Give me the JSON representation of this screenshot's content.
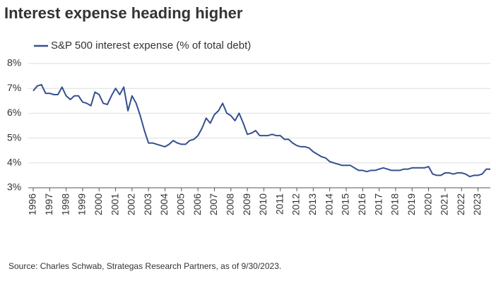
{
  "chart_data": {
    "type": "line",
    "title": "Interest expense heading higher",
    "source": "Source: Charles Schwab, Strategas Research Partners, as of 9/30/2023.",
    "x": [
      1996,
      1996.25,
      1996.5,
      1996.75,
      1997,
      1997.25,
      1997.5,
      1997.75,
      1998,
      1998.25,
      1998.5,
      1998.75,
      1999,
      1999.25,
      1999.5,
      1999.75,
      2000,
      2000.25,
      2000.5,
      2000.75,
      2001,
      2001.25,
      2001.5,
      2001.75,
      2002,
      2002.25,
      2002.5,
      2002.75,
      2003,
      2003.25,
      2003.5,
      2003.75,
      2004,
      2004.25,
      2004.5,
      2004.75,
      2005,
      2005.25,
      2005.5,
      2005.75,
      2006,
      2006.25,
      2006.5,
      2006.75,
      2007,
      2007.25,
      2007.5,
      2007.75,
      2008,
      2008.25,
      2008.5,
      2008.75,
      2009,
      2009.25,
      2009.5,
      2009.75,
      2010,
      2010.25,
      2010.5,
      2010.75,
      2011,
      2011.25,
      2011.5,
      2011.75,
      2012,
      2012.25,
      2012.5,
      2012.75,
      2013,
      2013.25,
      2013.5,
      2013.75,
      2014,
      2014.25,
      2014.5,
      2014.75,
      2015,
      2015.25,
      2015.5,
      2015.75,
      2016,
      2016.25,
      2016.5,
      2016.75,
      2017,
      2017.25,
      2017.5,
      2017.75,
      2018,
      2018.25,
      2018.5,
      2018.75,
      2019,
      2019.25,
      2019.5,
      2019.75,
      2020,
      2020.25,
      2020.5,
      2020.75,
      2021,
      2021.25,
      2021.5,
      2021.75,
      2022,
      2022.25,
      2022.5,
      2022.75,
      2023,
      2023.25,
      2023.5,
      2023.75
    ],
    "series": [
      {
        "name": "S&P 500 interest expense (% of total debt)",
        "color": "#34508f",
        "values": [
          6.9,
          7.1,
          7.15,
          6.8,
          6.8,
          6.75,
          6.75,
          7.05,
          6.7,
          6.55,
          6.7,
          6.7,
          6.45,
          6.4,
          6.3,
          6.85,
          6.75,
          6.4,
          6.35,
          6.7,
          7.0,
          6.75,
          7.05,
          6.1,
          6.7,
          6.4,
          5.9,
          5.3,
          4.8,
          4.8,
          4.75,
          4.7,
          4.65,
          4.75,
          4.9,
          4.8,
          4.75,
          4.75,
          4.9,
          4.95,
          5.1,
          5.4,
          5.8,
          5.6,
          5.95,
          6.1,
          6.4,
          6.0,
          5.9,
          5.7,
          6.0,
          5.6,
          5.15,
          5.2,
          5.3,
          5.1,
          5.1,
          5.1,
          5.15,
          5.1,
          5.1,
          4.95,
          4.95,
          4.8,
          4.7,
          4.65,
          4.65,
          4.6,
          4.45,
          4.35,
          4.25,
          4.2,
          4.05,
          4.0,
          3.95,
          3.9,
          3.9,
          3.9,
          3.8,
          3.7,
          3.7,
          3.65,
          3.7,
          3.7,
          3.75,
          3.8,
          3.75,
          3.7,
          3.7,
          3.7,
          3.75,
          3.75,
          3.8,
          3.8,
          3.8,
          3.8,
          3.85,
          3.55,
          3.5,
          3.5,
          3.6,
          3.6,
          3.55,
          3.6,
          3.6,
          3.55,
          3.45,
          3.5,
          3.5,
          3.55,
          3.75,
          3.75
        ]
      }
    ],
    "xlim": [
      1996,
      2023.75
    ],
    "xticks": [
      1996,
      1997,
      1998,
      1999,
      2000,
      2001,
      2002,
      2003,
      2004,
      2005,
      2006,
      2007,
      2008,
      2009,
      2010,
      2011,
      2012,
      2013,
      2014,
      2015,
      2016,
      2017,
      2018,
      2019,
      2020,
      2021,
      2022,
      2023
    ],
    "ylim": [
      3,
      8
    ],
    "yticks": [
      {
        "value": 3,
        "label": "3%"
      },
      {
        "value": 4,
        "label": "4%"
      },
      {
        "value": 5,
        "label": "5%"
      },
      {
        "value": 6,
        "label": "6%"
      },
      {
        "value": 7,
        "label": "7%"
      },
      {
        "value": 8,
        "label": "8%"
      }
    ],
    "grid": true
  }
}
